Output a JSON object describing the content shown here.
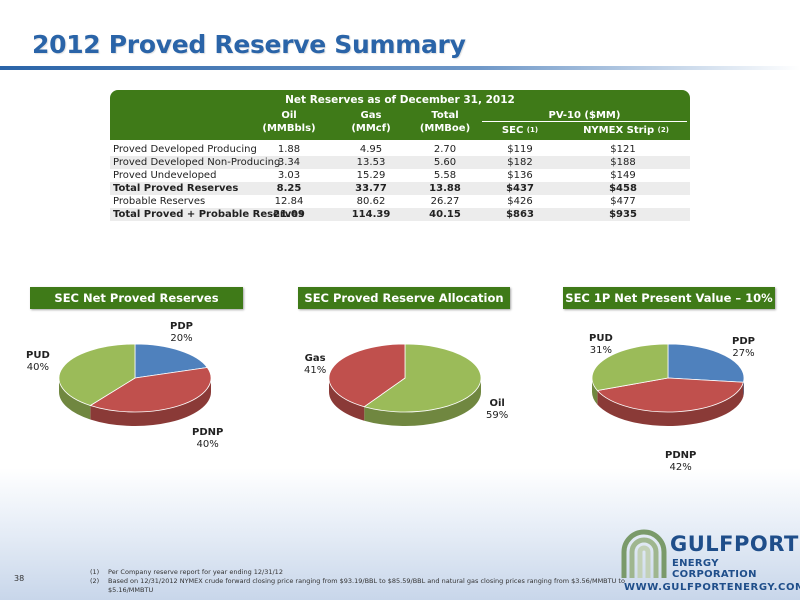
{
  "title": "2012 Proved Reserve Summary",
  "table": {
    "banner": "Net Reserves as of  December 31, 2012",
    "headers": {
      "oil": "Oil",
      "oil_unit": "(MMBbls)",
      "gas": "Gas",
      "gas_unit": "(MMcf)",
      "total": "Total",
      "total_unit": "(MMBoe)",
      "pv10": "PV-10 ($MM)",
      "sec": "SEC",
      "sec_note": "(1)",
      "nymex": "NYMEX Strip",
      "nymex_note": "(2)"
    },
    "rows": [
      {
        "label": "Proved Developed Producing",
        "oil": "1.88",
        "gas": "4.95",
        "total": "2.70",
        "sec": "$119",
        "nymex": "$121",
        "bold": false
      },
      {
        "label": "Proved Developed Non-Producing",
        "oil": "3.34",
        "gas": "13.53",
        "total": "5.60",
        "sec": "$182",
        "nymex": "$188",
        "bold": false
      },
      {
        "label": "Proved Undeveloped",
        "oil": "3.03",
        "gas": "15.29",
        "total": "5.58",
        "sec": "$136",
        "nymex": "$149",
        "bold": false
      },
      {
        "label": "Total Proved Reserves",
        "oil": "8.25",
        "gas": "33.77",
        "total": "13.88",
        "sec": "$437",
        "nymex": "$458",
        "bold": true
      },
      {
        "label": "Probable Reserves",
        "oil": "12.84",
        "gas": "80.62",
        "total": "26.27",
        "sec": "$426",
        "nymex": "$477",
        "bold": false
      },
      {
        "label": "Total Proved + Probable Reserves",
        "oil": "21.09",
        "gas": "114.39",
        "total": "40.15",
        "sec": "$863",
        "nymex": "$935",
        "bold": true
      }
    ]
  },
  "charts": {
    "net_proved": {
      "header": "SEC Net Proved Reserves",
      "slices": [
        {
          "name": "PDP",
          "pct_label": "20%",
          "value": 20,
          "color": "#4f81bd"
        },
        {
          "name": "PDNP",
          "pct_label": "40%",
          "value": 40,
          "color": "#c0504d"
        },
        {
          "name": "PUD",
          "pct_label": "40%",
          "value": 40,
          "color": "#9bbb59"
        }
      ]
    },
    "allocation": {
      "header": "SEC Proved Reserve Allocation",
      "slices": [
        {
          "name": "Oil",
          "pct_label": "59%",
          "value": 59,
          "color": "#9bbb59"
        },
        {
          "name": "Gas",
          "pct_label": "41%",
          "value": 41,
          "color": "#c0504d"
        }
      ]
    },
    "npv": {
      "header": "SEC 1P Net Present Value – 10%",
      "slices": [
        {
          "name": "PDP",
          "pct_label": "27%",
          "value": 27,
          "color": "#4f81bd"
        },
        {
          "name": "PDNP",
          "pct_label": "42%",
          "value": 42,
          "color": "#c0504d"
        },
        {
          "name": "PUD",
          "pct_label": "31%",
          "value": 31,
          "color": "#9bbb59"
        }
      ]
    }
  },
  "footnotes": [
    {
      "num": "(1)",
      "text": "Per Company reserve report for year ending 12/31/12"
    },
    {
      "num": "(2)",
      "text": "Based on 12/31/2012 NYMEX crude forward closing price ranging from $93.19/BBL to $85.59/BBL and natural gas closing prices ranging from $3.56/MMBTU to $5.16/MMBTU"
    }
  ],
  "page_number": "38",
  "logo": {
    "name": "GULFPORT",
    "sub": "ENERGY CORPORATION",
    "url": "WWW.GULFPORTENERGY.COM"
  }
}
